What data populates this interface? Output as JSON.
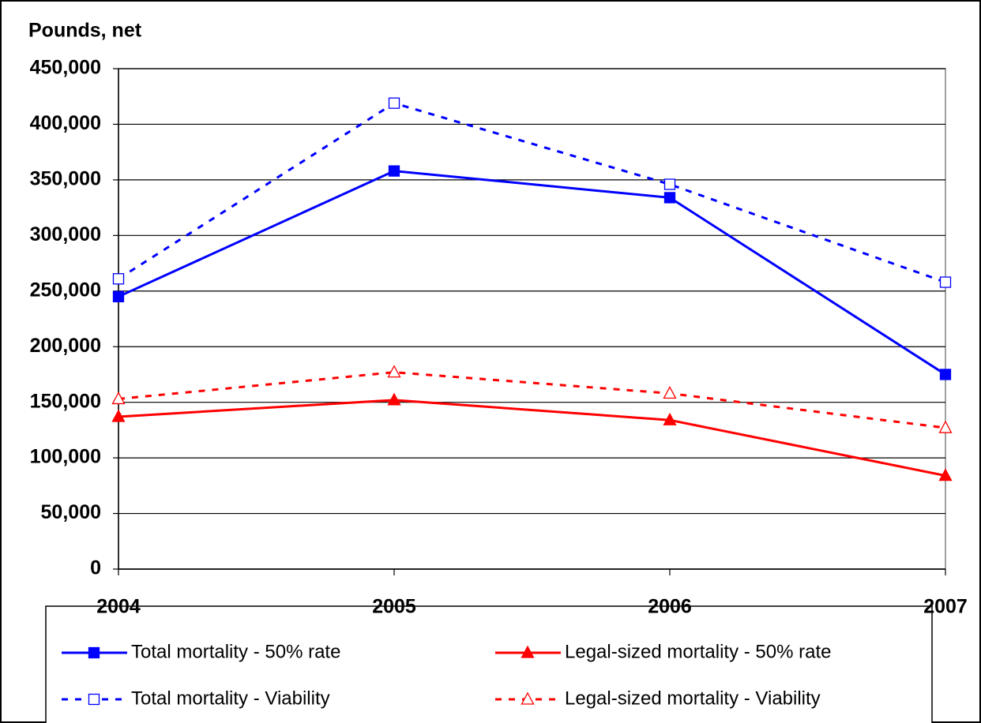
{
  "chart_data": {
    "type": "line",
    "y_label": "Pounds, net",
    "x": [
      2004,
      2005,
      2006,
      2007
    ],
    "xlim": [
      2004,
      2007
    ],
    "xticks": [
      2004,
      2005,
      2006,
      2007
    ],
    "ylim": [
      0,
      450000
    ],
    "yticks": [
      0,
      {
        "value": 50000,
        "label": "50,000"
      },
      {
        "value": 100000,
        "label": "100,000"
      },
      {
        "value": 150000,
        "label": "150,000"
      },
      {
        "value": 200000,
        "label": "200,000"
      },
      {
        "value": 250000,
        "label": "250,000"
      },
      {
        "value": 300000,
        "label": "300,000"
      },
      {
        "value": 350000,
        "label": "350,000"
      },
      {
        "value": 400000,
        "label": "400,000"
      },
      {
        "value": 450000,
        "label": "450,000"
      }
    ],
    "grid": true,
    "legend": "bottom",
    "series": [
      {
        "name": "Total mortality - 50% rate",
        "color": "#0000ff",
        "style": "solid",
        "marker": "square",
        "marker_filled": true,
        "values": [
          245000,
          358000,
          334000,
          175000
        ]
      },
      {
        "name": "Legal-sized mortality - 50% rate",
        "color": "#ff0000",
        "style": "solid",
        "marker": "triangle",
        "marker_filled": true,
        "values": [
          137000,
          152000,
          134000,
          84000
        ]
      },
      {
        "name": "Total mortality - Viability",
        "color": "#0000ff",
        "style": "dashed",
        "marker": "square",
        "marker_filled": false,
        "values": [
          261000,
          419000,
          346000,
          258000
        ]
      },
      {
        "name": "Legal-sized mortality - Viability",
        "color": "#ff0000",
        "style": "dashed",
        "marker": "triangle",
        "marker_filled": false,
        "values": [
          153000,
          177000,
          158000,
          127000
        ]
      }
    ]
  }
}
